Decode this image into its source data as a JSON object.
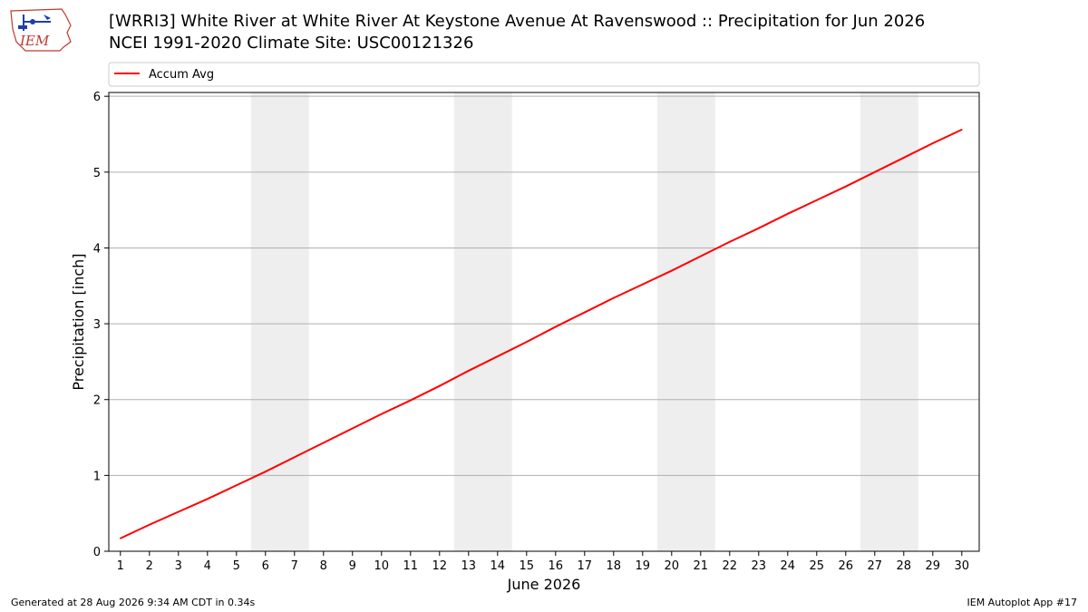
{
  "header": {
    "title_line1": "[WRRI3] White River at White River At Keystone Avenue At Ravenswood :: Precipitation for Jun 2026",
    "title_line2": "NCEI 1991-2020 Climate Site: USC00121326"
  },
  "logo": {
    "text": "IEM",
    "icon": "iem-logo-icon"
  },
  "footer": {
    "generated": "Generated at 28 Aug 2026 9:34 AM CDT in 0.34s",
    "app": "IEM Autoplot App #17"
  },
  "colors": {
    "series": "#ff0000",
    "weekend_band": "#eeeeee",
    "grid": "#b0b0b0"
  },
  "chart_data": {
    "type": "line",
    "xlabel": "June 2026",
    "ylabel": "Precipitation [inch]",
    "xlim": [
      0.6,
      30.6
    ],
    "ylim": [
      0,
      6.05
    ],
    "x": [
      1,
      2,
      3,
      4,
      5,
      6,
      7,
      8,
      9,
      10,
      11,
      12,
      13,
      14,
      15,
      16,
      17,
      18,
      19,
      20,
      21,
      22,
      23,
      24,
      25,
      26,
      27,
      28,
      29,
      30
    ],
    "x_tick_labels": [
      "1",
      "2",
      "3",
      "4",
      "5",
      "6",
      "7",
      "8",
      "9",
      "10",
      "11",
      "12",
      "13",
      "14",
      "15",
      "16",
      "17",
      "18",
      "19",
      "20",
      "21",
      "22",
      "23",
      "24",
      "25",
      "26",
      "27",
      "28",
      "29",
      "30"
    ],
    "y_ticks": [
      0,
      1,
      2,
      3,
      4,
      5,
      6
    ],
    "y_tick_labels": [
      "0",
      "1",
      "2",
      "3",
      "4",
      "5",
      "6"
    ],
    "grid": "horizontal",
    "legend": "top",
    "shaded_ranges": [
      [
        5.5,
        7.5
      ],
      [
        12.5,
        14.5
      ],
      [
        19.5,
        21.5
      ],
      [
        26.5,
        28.5
      ]
    ],
    "series": [
      {
        "name": "Accum Avg",
        "values": [
          0.17,
          0.35,
          0.52,
          0.69,
          0.87,
          1.05,
          1.24,
          1.43,
          1.62,
          1.81,
          1.99,
          2.18,
          2.38,
          2.57,
          2.76,
          2.96,
          3.15,
          3.34,
          3.52,
          3.7,
          3.89,
          4.08,
          4.26,
          4.45,
          4.63,
          4.81,
          5.0,
          5.19,
          5.38,
          5.56
        ]
      }
    ]
  }
}
